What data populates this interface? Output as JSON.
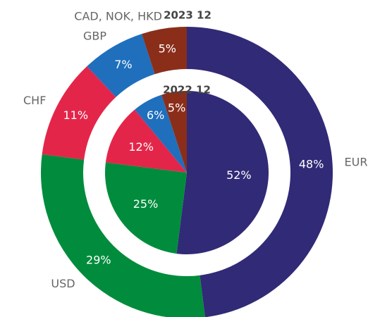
{
  "chart_data": {
    "type": "pie",
    "categories": [
      "EUR",
      "USD",
      "CHF",
      "GBP",
      "CAD, NOK, HKD"
    ],
    "colors": [
      "#312a76",
      "#008c3c",
      "#e4254a",
      "#1f6fbd",
      "#8a2e1a"
    ],
    "series": [
      {
        "name": "2023 12",
        "values": [
          48,
          29,
          11,
          7,
          5
        ],
        "value_labels": [
          "48%",
          "29%",
          "11%",
          "7%",
          "5%"
        ]
      },
      {
        "name": "2022 12",
        "values": [
          52,
          25,
          12,
          6,
          5
        ],
        "value_labels": [
          "52%",
          "25%",
          "12%",
          "6%",
          "5%"
        ]
      }
    ]
  }
}
